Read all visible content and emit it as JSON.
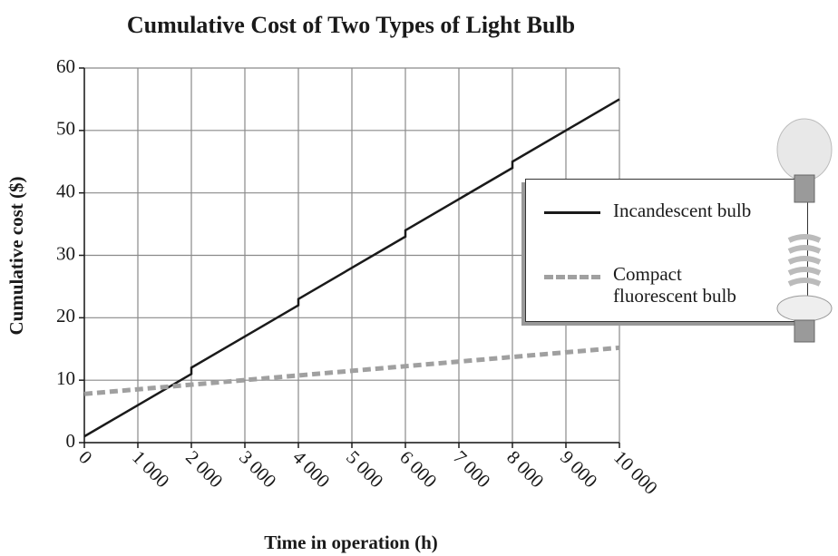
{
  "chart_data": {
    "type": "line",
    "title": "Cumulative Cost of Two Types of Light Bulb",
    "xlabel": "Time in operation (h)",
    "ylabel": "Cumulative cost ($)",
    "xlim": [
      0,
      10000
    ],
    "ylim": [
      0,
      60
    ],
    "xticks": [
      0,
      {
        "value": 1000,
        "label": "1 000"
      },
      {
        "value": 2000,
        "label": "2 000"
      },
      {
        "value": 3000,
        "label": "3 000"
      },
      {
        "value": 4000,
        "label": "4 000"
      },
      {
        "value": 5000,
        "label": "5 000"
      },
      {
        "value": 6000,
        "label": "6 000"
      },
      {
        "value": 7000,
        "label": "7 000"
      },
      {
        "value": 8000,
        "label": "8 000"
      },
      {
        "value": 9000,
        "label": "9 000"
      },
      {
        "value": 10000,
        "label": "10 000"
      }
    ],
    "yticks": [
      0,
      10,
      20,
      30,
      40,
      50,
      60
    ],
    "grid": true,
    "legend": "right",
    "series": [
      {
        "name": "Incandescent bulb",
        "color": "#1a1a1a",
        "dash": false,
        "x": [
          0,
          2000,
          2000,
          4000,
          4000,
          6000,
          6000,
          8000,
          8000,
          10000
        ],
        "values": [
          1,
          11,
          12,
          22,
          23,
          33,
          34,
          44,
          45,
          55
        ]
      },
      {
        "name": "Compact fluorescent bulb",
        "color": "#a0a0a0",
        "dash": true,
        "x": [
          0,
          10000
        ],
        "values": [
          7.8,
          15.2
        ]
      }
    ]
  }
}
